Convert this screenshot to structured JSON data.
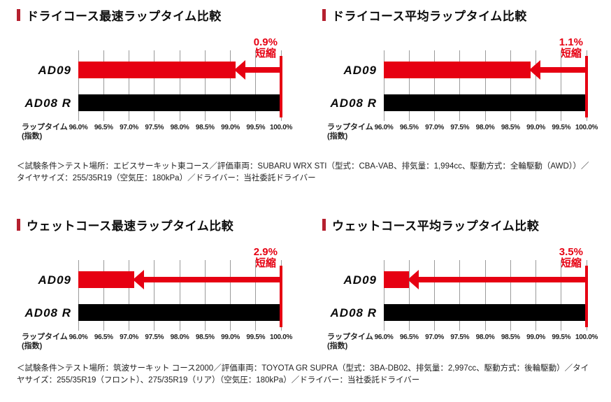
{
  "colors": {
    "red": "#e60012",
    "black": "#000000",
    "bullet": "#b5202f",
    "gridline": "#9a9a9a",
    "background": "#ffffff"
  },
  "axis": {
    "label_line1": "ラップタイム",
    "label_line2": "(指数)"
  },
  "chart_data": [
    {
      "type": "bar",
      "orientation": "horizontal",
      "title": "ドライコース最速ラップタイム比較",
      "categories": [
        "AD09",
        "AD08 R"
      ],
      "values": [
        99.1,
        100.0
      ],
      "bar_colors": [
        "#e60012",
        "#000000"
      ],
      "xlabel": "ラップタイム（指数）",
      "xlim": [
        96.0,
        100.0
      ],
      "xticks": [
        "96.0%",
        "96.5%",
        "97.0%",
        "97.5%",
        "98.0%",
        "98.5%",
        "99.0%",
        "99.5%",
        "100.0%"
      ],
      "grid": true,
      "annotation_lines": [
        "0.9%",
        "短縮"
      ]
    },
    {
      "type": "bar",
      "orientation": "horizontal",
      "title": "ドライコース平均ラップタイム比較",
      "categories": [
        "AD09",
        "AD08 R"
      ],
      "values": [
        98.9,
        100.0
      ],
      "bar_colors": [
        "#e60012",
        "#000000"
      ],
      "xlabel": "ラップタイム（指数）",
      "xlim": [
        96.0,
        100.0
      ],
      "xticks": [
        "96.0%",
        "96.5%",
        "97.0%",
        "97.5%",
        "98.0%",
        "98.5%",
        "99.0%",
        "99.5%",
        "100.0%"
      ],
      "grid": true,
      "annotation_lines": [
        "1.1%",
        "短縮"
      ]
    },
    {
      "type": "bar",
      "orientation": "horizontal",
      "title": "ウェットコース最速ラップタイム比較",
      "categories": [
        "AD09",
        "AD08 R"
      ],
      "values": [
        97.1,
        100.0
      ],
      "bar_colors": [
        "#e60012",
        "#000000"
      ],
      "xlabel": "ラップタイム（指数）",
      "xlim": [
        96.0,
        100.0
      ],
      "xticks": [
        "96.0%",
        "96.5%",
        "97.0%",
        "97.5%",
        "98.0%",
        "98.5%",
        "99.0%",
        "99.5%",
        "100.0%"
      ],
      "grid": true,
      "annotation_lines": [
        "2.9%",
        "短縮"
      ]
    },
    {
      "type": "bar",
      "orientation": "horizontal",
      "title": "ウェットコース平均ラップタイム比較",
      "categories": [
        "AD09",
        "AD08 R"
      ],
      "values": [
        96.5,
        100.0
      ],
      "bar_colors": [
        "#e60012",
        "#000000"
      ],
      "xlabel": "ラップタイム（指数）",
      "xlim": [
        96.0,
        100.0
      ],
      "xticks": [
        "96.0%",
        "96.5%",
        "97.0%",
        "97.5%",
        "98.0%",
        "98.5%",
        "99.0%",
        "99.5%",
        "100.0%"
      ],
      "grid": true,
      "annotation_lines": [
        "3.5%",
        "短縮"
      ]
    }
  ],
  "notes": {
    "dry": "＜試験条件＞テスト場所：エビスサーキット東コース／評価車両：SUBARU WRX STI（型式：CBA-VAB、排気量：1,994cc、駆動方式：全輪駆動（AWD））／タイヤサイズ：255/35R19（空気圧：180kPa）／ドライバー：当社委託ドライバー",
    "wet": "＜試験条件＞テスト場所：筑波サーキット コース2000／評価車両：TOYOTA GR SUPRA（型式：3BA-DB02、排気量：2,997cc、駆動方式：後輪駆動）／タイヤサイズ：255/35R19（フロント）、275/35R19（リア）（空気圧：180kPa）／ドライバー：当社委託ドライバー"
  }
}
